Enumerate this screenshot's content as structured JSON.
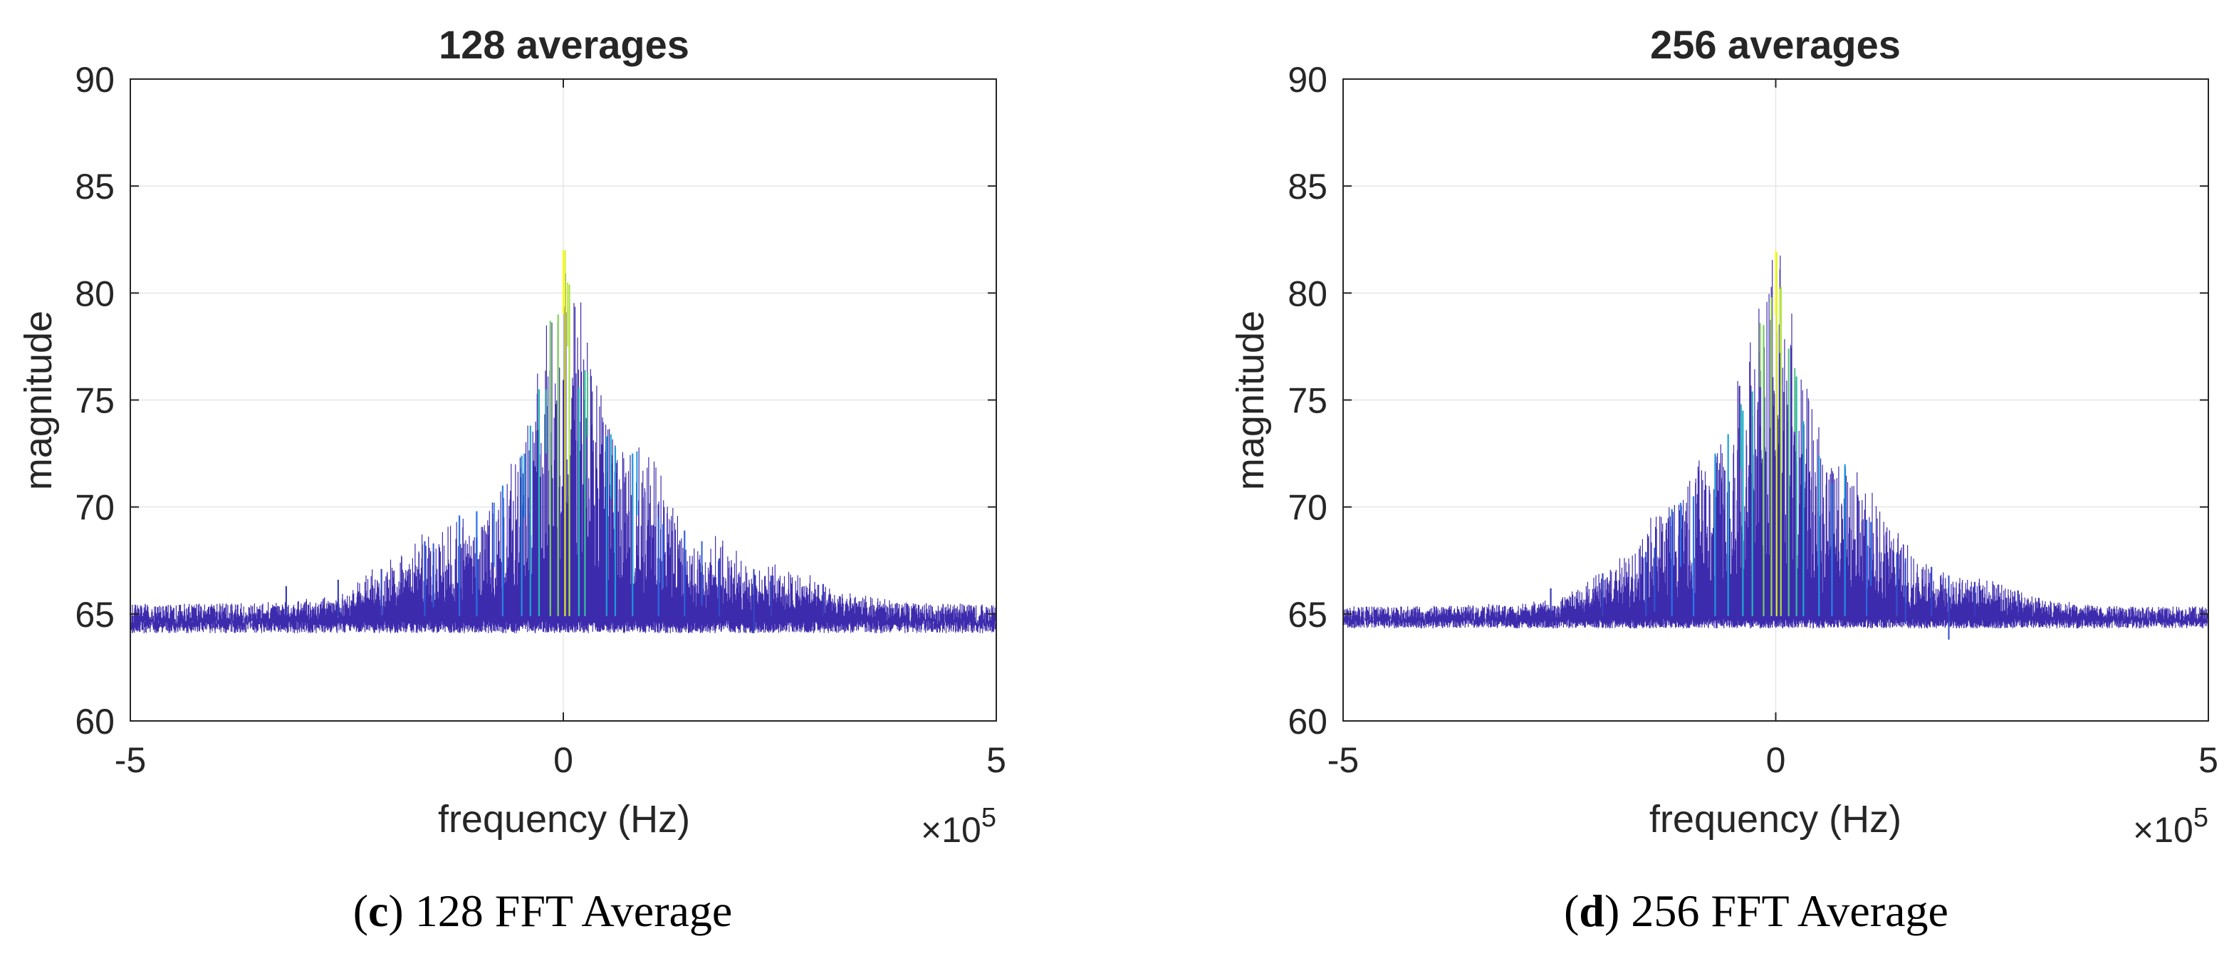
{
  "chart_data": [
    {
      "type": "line",
      "panel_label": "c",
      "caption_text": "128 FFT Average",
      "title": "128 averages",
      "xlabel": "frequency (Hz)",
      "ylabel": "magnitude",
      "x_multiplier_prefix": "×10",
      "x_multiplier_exponent": "5",
      "xlim": [
        -5,
        5
      ],
      "ylim": [
        60,
        90
      ],
      "xticks": [
        -5,
        0,
        5
      ],
      "yticks": [
        60,
        65,
        70,
        75,
        80,
        85,
        90
      ],
      "grid": true,
      "noise_floor": 65,
      "noise_spread": 0.6,
      "envelope_peak_x": [
        0,
        0.05,
        0.28,
        -0.2,
        0.55,
        -0.45,
        0.85,
        -0.8,
        1.15,
        -1.2,
        1.6,
        -1.5,
        2.2
      ],
      "envelope_peak_y": [
        82,
        80.5,
        76.3,
        75.5,
        73.4,
        72.5,
        72.6,
        70.2,
        69.2,
        69.5,
        68.4,
        68.3,
        67.1
      ],
      "series": [
        {
          "name": "spectrum",
          "peaks": [
            {
              "x": 0.02,
              "y": 82.0
            },
            {
              "x": 0.07,
              "y": 80.4
            },
            {
              "x": -0.06,
              "y": 79.0
            },
            {
              "x": -0.15,
              "y": 78.7
            },
            {
              "x": 0.25,
              "y": 76.4
            },
            {
              "x": 0.18,
              "y": 75.6
            },
            {
              "x": -0.28,
              "y": 75.5
            },
            {
              "x": -0.38,
              "y": 73.8
            },
            {
              "x": 0.5,
              "y": 73.3
            },
            {
              "x": 0.6,
              "y": 72.8
            },
            {
              "x": -0.48,
              "y": 72.4
            },
            {
              "x": 0.8,
              "y": 72.5
            },
            {
              "x": -0.7,
              "y": 71.0
            },
            {
              "x": 1.1,
              "y": 69.5
            },
            {
              "x": -1.2,
              "y": 69.6
            },
            {
              "x": -1.0,
              "y": 69.8
            },
            {
              "x": 1.4,
              "y": 68.9
            },
            {
              "x": -1.6,
              "y": 68.4
            },
            {
              "x": 1.8,
              "y": 67.6
            },
            {
              "x": -2.1,
              "y": 67.1
            },
            {
              "x": 2.4,
              "y": 66.8
            },
            {
              "x": -2.6,
              "y": 66.6
            },
            {
              "x": 3.0,
              "y": 66.4
            },
            {
              "x": -3.2,
              "y": 66.3
            }
          ]
        }
      ]
    },
    {
      "type": "line",
      "panel_label": "d",
      "caption_text": "256 FFT Average",
      "title": "256 averages",
      "xlabel": "frequency (Hz)",
      "ylabel": "magnitude",
      "x_multiplier_prefix": "×10",
      "x_multiplier_exponent": "5",
      "xlim": [
        -5,
        5
      ],
      "ylim": [
        60,
        90
      ],
      "xticks": [
        -5,
        0,
        5
      ],
      "yticks": [
        60,
        65,
        70,
        75,
        80,
        85,
        90
      ],
      "grid": true,
      "noise_floor": 65,
      "noise_spread": 0.45,
      "envelope_peak_x": [
        0,
        0.05,
        0.22,
        -0.18,
        0.5,
        -0.4,
        0.8,
        -0.7,
        1.1,
        -1.1,
        1.5,
        -1.4,
        2.0
      ],
      "envelope_peak_y": [
        82,
        80.2,
        76.5,
        78.6,
        72.3,
        74.8,
        72,
        72.5,
        69.3,
        70.2,
        67.6,
        68.1,
        66.8
      ],
      "series": [
        {
          "name": "spectrum",
          "peaks": [
            {
              "x": 0.01,
              "y": 81.9
            },
            {
              "x": 0.06,
              "y": 80.3
            },
            {
              "x": -0.05,
              "y": 79.8
            },
            {
              "x": -0.14,
              "y": 78.5
            },
            {
              "x": 0.15,
              "y": 77.4
            },
            {
              "x": 0.24,
              "y": 76.1
            },
            {
              "x": -0.27,
              "y": 75.4
            },
            {
              "x": -0.38,
              "y": 74.5
            },
            {
              "x": 0.32,
              "y": 74.0
            },
            {
              "x": -0.55,
              "y": 73.4
            },
            {
              "x": 0.5,
              "y": 72.4
            },
            {
              "x": 0.8,
              "y": 71.9
            },
            {
              "x": -0.7,
              "y": 72.2
            },
            {
              "x": 0.65,
              "y": 71.1
            },
            {
              "x": -0.95,
              "y": 70.5
            },
            {
              "x": 1.05,
              "y": 69.4
            },
            {
              "x": -1.2,
              "y": 69.9
            },
            {
              "x": 1.4,
              "y": 67.8
            },
            {
              "x": -1.5,
              "y": 67.9
            },
            {
              "x": 1.8,
              "y": 67.2
            },
            {
              "x": -2.0,
              "y": 66.9
            },
            {
              "x": 2.3,
              "y": 66.5
            },
            {
              "x": -2.6,
              "y": 66.2
            },
            {
              "x": 2.8,
              "y": 66.1
            }
          ]
        }
      ]
    }
  ]
}
